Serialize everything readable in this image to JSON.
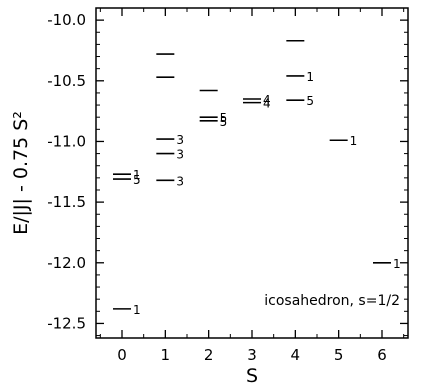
{
  "chart_data": {
    "type": "scatter",
    "marker": "horizontal-line",
    "xlabel": "S",
    "ylabel": "E/|J| - 0.75 S²",
    "annotation": "icosahedron, s=1/2",
    "xlim": [
      -0.6,
      6.6
    ],
    "ylim": [
      -12.62,
      -9.9
    ],
    "xticks": [
      0,
      1,
      2,
      3,
      4,
      5,
      6
    ],
    "yticks": [
      -10.0,
      -10.5,
      -11.0,
      -11.5,
      -12.0,
      -12.5
    ],
    "ytick_labels": [
      "-10.0",
      "-10.5",
      "-11.0",
      "-11.5",
      "-12.0",
      "-12.5"
    ],
    "grid": false,
    "levels": [
      {
        "S": 0,
        "E": -11.27,
        "label": "1"
      },
      {
        "S": 0,
        "E": -11.31,
        "label": "5"
      },
      {
        "S": 0,
        "E": -12.38,
        "label": "1"
      },
      {
        "S": 1,
        "E": -10.28,
        "label": ""
      },
      {
        "S": 1,
        "E": -10.47,
        "label": ""
      },
      {
        "S": 1,
        "E": -10.98,
        "label": "3"
      },
      {
        "S": 1,
        "E": -11.1,
        "label": "3"
      },
      {
        "S": 1,
        "E": -11.32,
        "label": "3"
      },
      {
        "S": 2,
        "E": -10.58,
        "label": ""
      },
      {
        "S": 2,
        "E": -10.8,
        "label": "5"
      },
      {
        "S": 2,
        "E": -10.83,
        "label": "5"
      },
      {
        "S": 3,
        "E": -10.65,
        "label": "4"
      },
      {
        "S": 3,
        "E": -10.68,
        "label": "4"
      },
      {
        "S": 4,
        "E": -10.17,
        "label": ""
      },
      {
        "S": 4,
        "E": -10.46,
        "label": "1"
      },
      {
        "S": 4,
        "E": -10.66,
        "label": "5"
      },
      {
        "S": 5,
        "E": -10.99,
        "label": "1"
      },
      {
        "S": 6,
        "E": -12.0,
        "label": "1"
      }
    ]
  }
}
